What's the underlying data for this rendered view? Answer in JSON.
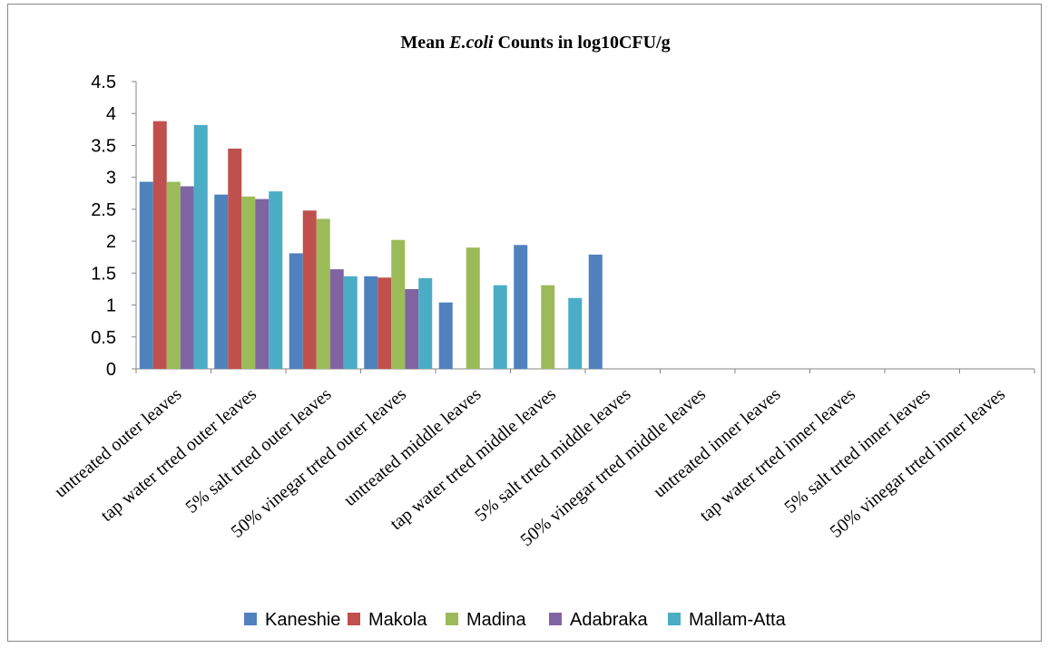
{
  "chart_data": {
    "type": "bar",
    "title": "Mean E.coli Counts in log10CFU/g",
    "title_parts": {
      "prefix": "Mean ",
      "italic": "E.coli",
      "suffix": " Counts in log10CFU/g"
    },
    "xlabel": "",
    "ylabel": "",
    "ylim": [
      0,
      4.5
    ],
    "y_ticks": [
      "0",
      "0.5",
      "1",
      "1.5",
      "2",
      "2.5",
      "3",
      "3.5",
      "4",
      "4.5"
    ],
    "grid": false,
    "legend_position": "bottom",
    "categories": [
      "untreated outer leaves",
      "tap water trted outer leaves",
      "5% salt trted outer leaves",
      "50% vinegar trted outer leaves",
      "untreated middle leaves",
      "tap water trted middle leaves",
      "5% salt trted middle leaves",
      "50% vinegar trted middle leaves",
      "untreated inner leaves",
      "tap water trted inner leaves",
      "5% salt trted inner leaves",
      "50% vinegar trted inner leaves"
    ],
    "series": [
      {
        "name": "Kaneshie",
        "color": "#4F81BD",
        "values": [
          2.93,
          2.73,
          1.81,
          1.45,
          1.04,
          1.94,
          1.79,
          0,
          0,
          0,
          0,
          0
        ]
      },
      {
        "name": "Makola",
        "color": "#C0504D",
        "values": [
          3.88,
          3.45,
          2.48,
          1.43,
          0,
          0,
          0,
          0,
          0,
          0,
          0,
          0
        ]
      },
      {
        "name": "Madina",
        "color": "#9BBB59",
        "values": [
          2.93,
          2.7,
          2.35,
          2.02,
          1.9,
          1.31,
          0,
          0,
          0,
          0,
          0,
          0
        ]
      },
      {
        "name": "Adabraka",
        "color": "#8064A2",
        "values": [
          2.86,
          2.66,
          1.56,
          1.25,
          0,
          0,
          0,
          0,
          0,
          0,
          0,
          0
        ]
      },
      {
        "name": "Mallam-Atta",
        "color": "#4BACC6",
        "values": [
          3.82,
          2.78,
          1.45,
          1.42,
          1.31,
          1.11,
          0,
          0,
          0,
          0,
          0,
          0
        ]
      }
    ]
  }
}
